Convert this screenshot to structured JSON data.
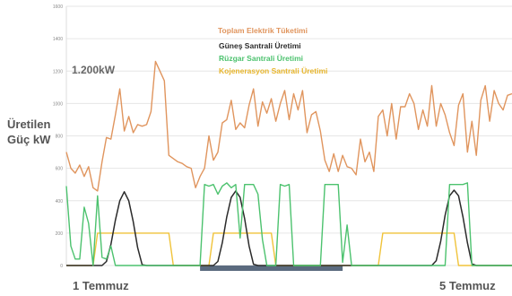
{
  "ylabel_line1": "Üretilen",
  "ylabel_line2": "Güç kW",
  "annotation": "1.200kW",
  "x_start_label": "1 Temmuz",
  "x_end_label": "5 Temmuz",
  "chart_data": {
    "type": "line",
    "ylabel": "Üretilen Güç kW",
    "ylim": [
      0,
      1600
    ],
    "yticks": [
      0,
      200,
      400,
      600,
      800,
      1000,
      1200,
      1400,
      1600
    ],
    "grid": true,
    "legend_position": "top-center",
    "x": [
      0,
      1,
      2,
      3,
      4,
      5,
      6,
      7,
      8,
      9,
      10,
      11,
      12,
      13,
      14,
      15,
      16,
      17,
      18,
      19,
      20,
      21,
      22,
      23,
      24,
      25,
      26,
      27,
      28,
      29,
      30,
      31,
      32,
      33,
      34,
      35,
      36,
      37,
      38,
      39,
      40,
      41,
      42,
      43,
      44,
      45,
      46,
      47,
      48,
      49,
      50,
      51,
      52,
      53,
      54,
      55,
      56,
      57,
      58,
      59,
      60,
      61,
      62,
      63,
      64,
      65,
      66,
      67,
      68,
      69,
      70,
      71,
      72,
      73,
      74,
      75,
      76,
      77,
      78,
      79,
      80,
      81,
      82,
      83,
      84,
      85,
      86,
      87,
      88,
      89,
      90,
      91,
      92,
      93,
      94,
      95,
      96,
      97,
      98,
      99,
      100
    ],
    "series": [
      {
        "name": "Toplam Elektrik Tüketimi",
        "color": "#E0955E",
        "values": [
          700,
          600,
          570,
          620,
          550,
          610,
          480,
          460,
          640,
          790,
          780,
          930,
          1090,
          830,
          920,
          820,
          870,
          860,
          870,
          950,
          1260,
          1200,
          1140,
          680,
          660,
          640,
          630,
          610,
          600,
          480,
          550,
          600,
          800,
          650,
          700,
          880,
          900,
          1020,
          840,
          880,
          850,
          990,
          1090,
          860,
          1010,
          940,
          1030,
          890,
          1000,
          1080,
          900,
          1060,
          960,
          1080,
          820,
          930,
          950,
          830,
          650,
          580,
          690,
          580,
          680,
          610,
          600,
          560,
          780,
          640,
          700,
          580,
          920,
          960,
          800,
          1000,
          780,
          980,
          980,
          1060,
          1000,
          840,
          960,
          860,
          1110,
          860,
          1000,
          930,
          820,
          740,
          990,
          1060,
          700,
          890,
          680,
          1020,
          1110,
          890,
          1080,
          1000,
          960,
          1050,
          1060
        ]
      },
      {
        "name": "Güneş Santrali Üretimi",
        "color": "#2B2B2B",
        "values": [
          0,
          0,
          0,
          0,
          0,
          0,
          0,
          0,
          0,
          25,
          130,
          280,
          400,
          455,
          400,
          270,
          110,
          5,
          0,
          0,
          0,
          0,
          0,
          0,
          0,
          0,
          0,
          0,
          0,
          0,
          0,
          0,
          0,
          0,
          25,
          140,
          300,
          420,
          460,
          420,
          290,
          120,
          8,
          0,
          0,
          0,
          0,
          0,
          0,
          0,
          0,
          0,
          0,
          0,
          0,
          0,
          0,
          0,
          0,
          0,
          0,
          0,
          0,
          0,
          0,
          0,
          0,
          0,
          0,
          0,
          0,
          0,
          0,
          0,
          0,
          0,
          0,
          0,
          0,
          0,
          0,
          0,
          0,
          30,
          150,
          310,
          430,
          465,
          430,
          300,
          140,
          10,
          0,
          0,
          0,
          0,
          0,
          0,
          0,
          0,
          0
        ]
      },
      {
        "name": "Rüzgar Santrali Üretimi",
        "color": "#4CC26E",
        "values": [
          490,
          120,
          40,
          40,
          360,
          260,
          0,
          430,
          50,
          40,
          120,
          0,
          0,
          0,
          0,
          0,
          0,
          0,
          0,
          0,
          0,
          0,
          0,
          0,
          0,
          0,
          0,
          0,
          0,
          0,
          0,
          500,
          490,
          500,
          440,
          490,
          510,
          480,
          500,
          170,
          500,
          500,
          500,
          440,
          160,
          0,
          0,
          0,
          500,
          490,
          500,
          0,
          0,
          0,
          0,
          0,
          0,
          0,
          500,
          500,
          500,
          500,
          20,
          250,
          0,
          0,
          0,
          0,
          0,
          0,
          0,
          0,
          0,
          0,
          0,
          0,
          0,
          0,
          0,
          0,
          0,
          0,
          0,
          0,
          0,
          0,
          500,
          500,
          500,
          500,
          510,
          0,
          0,
          0,
          0,
          0,
          0,
          0,
          0,
          0,
          0
        ]
      },
      {
        "name": "Kojenerasyon Santrali Üretimi",
        "color": "#F0C33A",
        "values": [
          0,
          0,
          0,
          0,
          0,
          0,
          0,
          200,
          200,
          200,
          200,
          200,
          200,
          200,
          200,
          200,
          200,
          200,
          200,
          200,
          200,
          200,
          200,
          200,
          0,
          0,
          0,
          0,
          0,
          0,
          0,
          0,
          0,
          200,
          200,
          200,
          200,
          200,
          200,
          200,
          200,
          200,
          200,
          200,
          200,
          200,
          200,
          0,
          0,
          0,
          0,
          0,
          0,
          0,
          0,
          0,
          0,
          0,
          0,
          0,
          0,
          0,
          0,
          0,
          0,
          0,
          0,
          0,
          0,
          0,
          0,
          200,
          200,
          200,
          200,
          200,
          200,
          200,
          200,
          200,
          200,
          200,
          200,
          200,
          200,
          200,
          200,
          200,
          0,
          0,
          0,
          0,
          0,
          0,
          0,
          0,
          0,
          0,
          0,
          0,
          0
        ]
      }
    ]
  },
  "highlight_bar": {
    "from": 30,
    "to": 62
  }
}
